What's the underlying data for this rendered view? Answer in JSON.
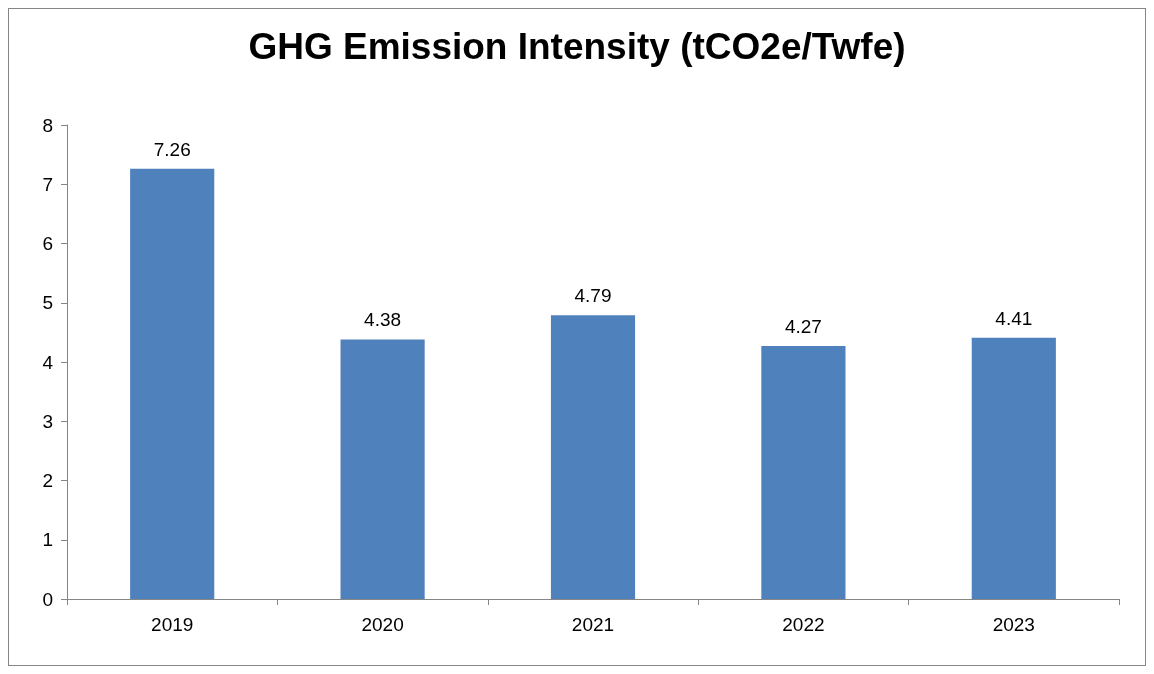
{
  "chart_data": {
    "type": "bar",
    "title": "GHG Emission Intensity (tCO2e/Twfe)",
    "categories": [
      "2019",
      "2020",
      "2021",
      "2022",
      "2023"
    ],
    "values": [
      7.26,
      4.38,
      4.79,
      4.27,
      4.41
    ],
    "color": "#4f81bd",
    "ylim": [
      0,
      8
    ],
    "yticks": [
      0,
      1,
      2,
      3,
      4,
      5,
      6,
      7,
      8
    ],
    "data_labels": true,
    "grid": false
  }
}
